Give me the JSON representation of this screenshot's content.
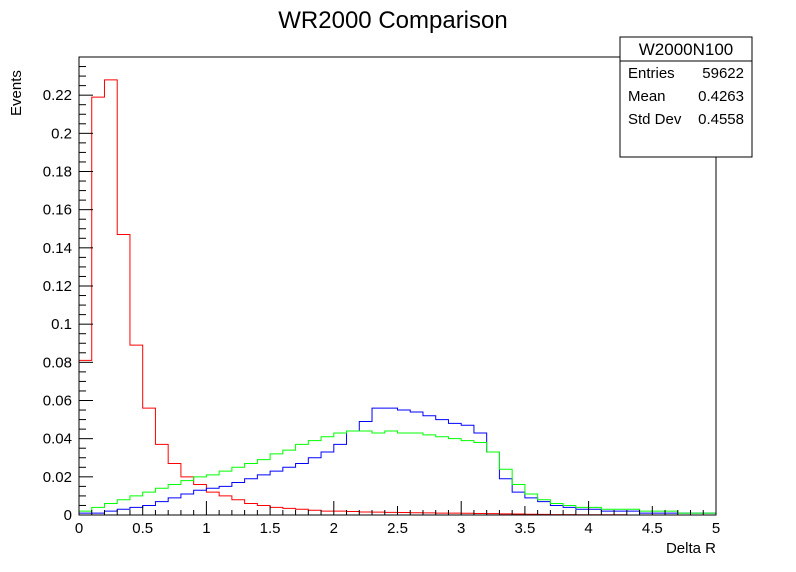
{
  "chart_data": {
    "type": "histogram",
    "title": "WR2000 Comparison",
    "xlabel": "Delta R",
    "ylabel": "Events",
    "xlim": [
      0,
      5
    ],
    "ylim": [
      0,
      0.24
    ],
    "bin_width": 0.1,
    "x_ticks": [
      "0",
      "0.5",
      "1",
      "1.5",
      "2",
      "2.5",
      "3",
      "3.5",
      "4",
      "4.5",
      "5"
    ],
    "y_ticks": [
      "0",
      "0.02",
      "0.04",
      "0.06",
      "0.08",
      "0.1",
      "0.12",
      "0.14",
      "0.16",
      "0.18",
      "0.2",
      "0.22"
    ],
    "grid": false,
    "stats_box": {
      "name": "W2000N100",
      "rows": [
        {
          "label": "Entries",
          "value": "59622"
        },
        {
          "label": "Mean",
          "value": "0.4263"
        },
        {
          "label": "Std Dev",
          "value": "0.4558"
        }
      ]
    },
    "series": [
      {
        "color": "#ff0000",
        "x_bin_low": [
          0.0,
          0.1,
          0.2,
          0.3,
          0.4,
          0.5,
          0.6,
          0.7,
          0.8,
          0.9,
          1.0,
          1.1,
          1.2,
          1.3,
          1.4,
          1.5,
          1.6,
          1.7,
          1.8,
          1.9,
          2.0,
          2.1,
          2.2,
          2.3,
          2.4,
          2.5,
          2.6,
          2.7,
          2.8,
          2.9,
          3.0,
          3.1,
          3.2,
          3.3,
          3.4,
          3.5,
          3.6,
          3.7,
          3.8,
          3.9,
          4.0,
          4.1,
          4.2,
          4.3,
          4.4,
          4.5,
          4.6,
          4.7,
          4.8,
          4.9
        ],
        "values": [
          0.081,
          0.219,
          0.228,
          0.147,
          0.089,
          0.056,
          0.037,
          0.027,
          0.02,
          0.016,
          0.012,
          0.01,
          0.008,
          0.006,
          0.005,
          0.004,
          0.0035,
          0.003,
          0.0025,
          0.002,
          0.002,
          0.0018,
          0.0016,
          0.0015,
          0.0014,
          0.0013,
          0.0012,
          0.0011,
          0.001,
          0.001,
          0.0009,
          0.0008,
          0.0007,
          0.0006,
          0.0005,
          0.0004,
          0.0003,
          0.0002,
          0.0002,
          0.0001,
          0.0001,
          0.0001,
          0.0001,
          0,
          0,
          0,
          0,
          0,
          0,
          0
        ]
      },
      {
        "color": "#0000ff",
        "x_bin_low": [
          0.0,
          0.1,
          0.2,
          0.3,
          0.4,
          0.5,
          0.6,
          0.7,
          0.8,
          0.9,
          1.0,
          1.1,
          1.2,
          1.3,
          1.4,
          1.5,
          1.6,
          1.7,
          1.8,
          1.9,
          2.0,
          2.1,
          2.2,
          2.3,
          2.4,
          2.5,
          2.6,
          2.7,
          2.8,
          2.9,
          3.0,
          3.1,
          3.2,
          3.3,
          3.4,
          3.5,
          3.6,
          3.7,
          3.8,
          3.9,
          4.0,
          4.1,
          4.2,
          4.3,
          4.4,
          4.5,
          4.6,
          4.7,
          4.8,
          4.9
        ],
        "values": [
          0.001,
          0.001,
          0.002,
          0.003,
          0.004,
          0.005,
          0.007,
          0.009,
          0.011,
          0.013,
          0.014,
          0.015,
          0.017,
          0.019,
          0.021,
          0.023,
          0.025,
          0.027,
          0.03,
          0.033,
          0.037,
          0.044,
          0.049,
          0.056,
          0.056,
          0.055,
          0.054,
          0.052,
          0.05,
          0.048,
          0.047,
          0.043,
          0.033,
          0.019,
          0.012,
          0.009,
          0.007,
          0.005,
          0.004,
          0.003,
          0.003,
          0.002,
          0.002,
          0.002,
          0.001,
          0.001,
          0.001,
          0.001,
          0.001,
          0.001
        ]
      },
      {
        "color": "#00ff00",
        "x_bin_low": [
          0.0,
          0.1,
          0.2,
          0.3,
          0.4,
          0.5,
          0.6,
          0.7,
          0.8,
          0.9,
          1.0,
          1.1,
          1.2,
          1.3,
          1.4,
          1.5,
          1.6,
          1.7,
          1.8,
          1.9,
          2.0,
          2.1,
          2.2,
          2.3,
          2.4,
          2.5,
          2.6,
          2.7,
          2.8,
          2.9,
          3.0,
          3.1,
          3.2,
          3.3,
          3.4,
          3.5,
          3.6,
          3.7,
          3.8,
          3.9,
          4.0,
          4.1,
          4.2,
          4.3,
          4.4,
          4.5,
          4.6,
          4.7,
          4.8,
          4.9
        ],
        "values": [
          0.002,
          0.004,
          0.006,
          0.008,
          0.01,
          0.012,
          0.014,
          0.016,
          0.018,
          0.02,
          0.021,
          0.023,
          0.025,
          0.027,
          0.029,
          0.032,
          0.034,
          0.037,
          0.039,
          0.041,
          0.043,
          0.044,
          0.044,
          0.043,
          0.044,
          0.043,
          0.043,
          0.042,
          0.041,
          0.04,
          0.039,
          0.038,
          0.033,
          0.024,
          0.016,
          0.011,
          0.008,
          0.006,
          0.005,
          0.004,
          0.004,
          0.003,
          0.003,
          0.003,
          0.002,
          0.002,
          0.002,
          0.001,
          0.001,
          0.001
        ]
      }
    ]
  }
}
